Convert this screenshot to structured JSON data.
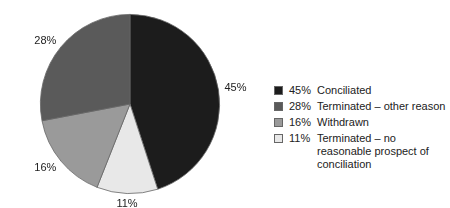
{
  "chart_data": {
    "type": "pie",
    "categories": [
      "Conciliated",
      "Terminated – no reasonable prospect of conciliation",
      "Withdrawn",
      "Terminated – other reason"
    ],
    "values": [
      45,
      11,
      16,
      28
    ],
    "value_labels": [
      "45%",
      "11%",
      "16%",
      "28%"
    ],
    "colors": [
      "#1c1c1c",
      "#e8e8e8",
      "#9a9a9a",
      "#5a5a5a"
    ],
    "data_labels": true,
    "legend": "right"
  }
}
